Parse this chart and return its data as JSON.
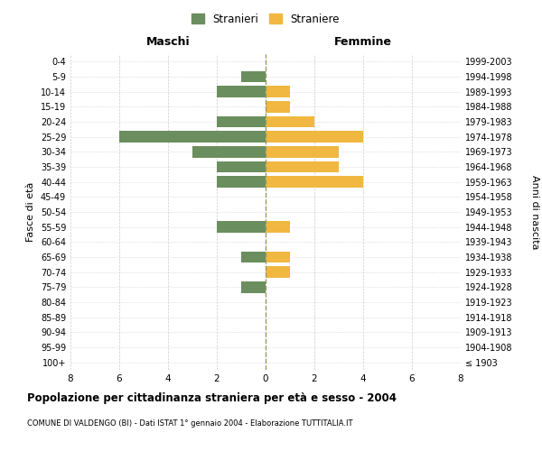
{
  "age_groups": [
    "100+",
    "95-99",
    "90-94",
    "85-89",
    "80-84",
    "75-79",
    "70-74",
    "65-69",
    "60-64",
    "55-59",
    "50-54",
    "45-49",
    "40-44",
    "35-39",
    "30-34",
    "25-29",
    "20-24",
    "15-19",
    "10-14",
    "5-9",
    "0-4"
  ],
  "birth_years": [
    "≤ 1903",
    "1904-1908",
    "1909-1913",
    "1914-1918",
    "1919-1923",
    "1924-1928",
    "1929-1933",
    "1934-1938",
    "1939-1943",
    "1944-1948",
    "1949-1953",
    "1954-1958",
    "1959-1963",
    "1964-1968",
    "1969-1973",
    "1974-1978",
    "1979-1983",
    "1984-1988",
    "1989-1993",
    "1994-1998",
    "1999-2003"
  ],
  "maschi": [
    0,
    0,
    0,
    0,
    0,
    1,
    0,
    1,
    0,
    2,
    0,
    0,
    2,
    2,
    3,
    6,
    2,
    0,
    2,
    1,
    0
  ],
  "femmine": [
    0,
    0,
    0,
    0,
    0,
    0,
    1,
    1,
    0,
    1,
    0,
    0,
    4,
    3,
    3,
    4,
    2,
    1,
    1,
    0,
    0
  ],
  "maschi_color": "#6b8e5e",
  "femmine_color": "#f0b840",
  "title": "Popolazione per cittadinanza straniera per età e sesso - 2004",
  "subtitle": "COMUNE DI VALDENGO (BI) - Dati ISTAT 1° gennaio 2004 - Elaborazione TUTTITALIA.IT",
  "xlabel_left": "Maschi",
  "xlabel_right": "Femmine",
  "ylabel_left": "Fasce di età",
  "ylabel_right": "Anni di nascita",
  "legend_maschi": "Stranieri",
  "legend_femmine": "Straniere",
  "xlim": 8,
  "background_color": "#ffffff",
  "grid_color": "#cccccc",
  "bar_height": 0.75
}
